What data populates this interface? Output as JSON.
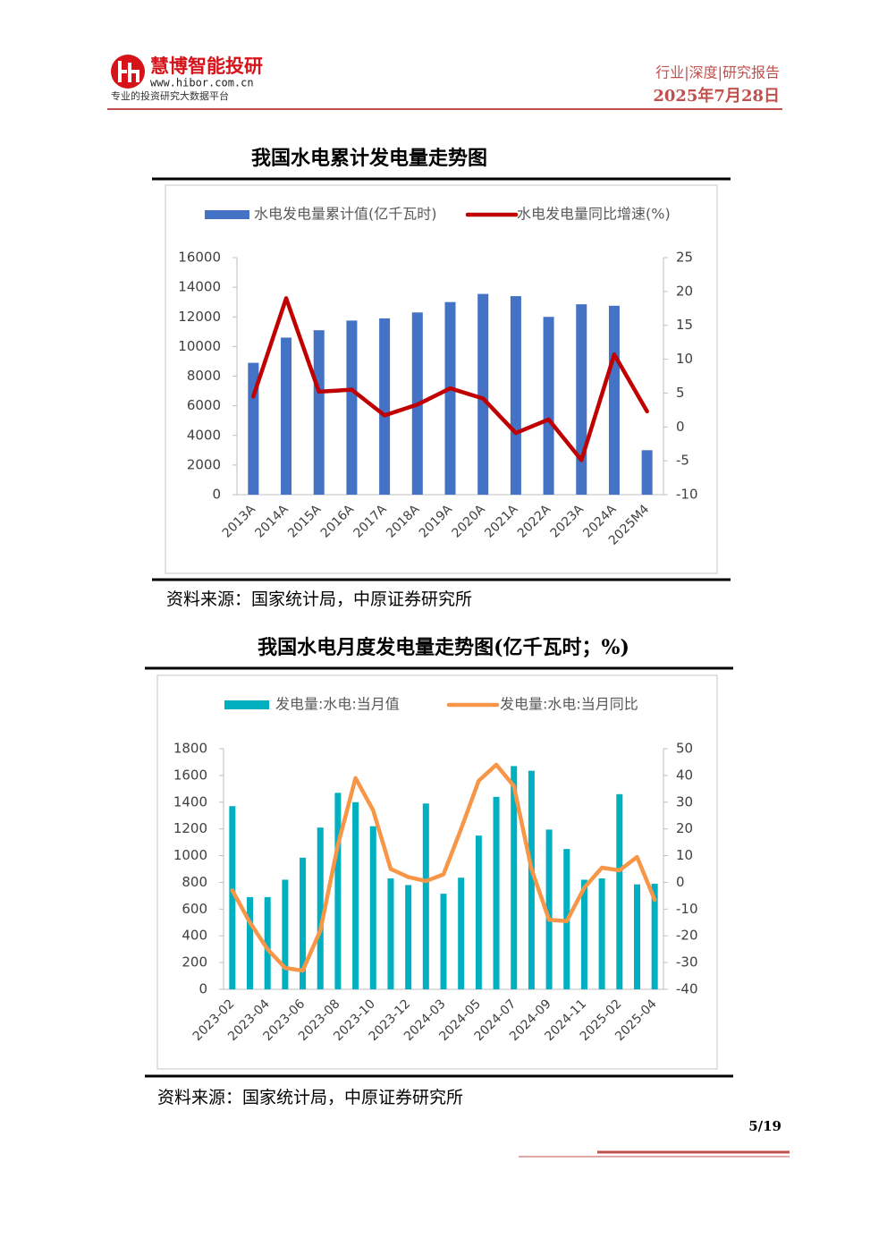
{
  "header": {
    "brand": "慧博智能投研",
    "url": "www.hibor.com.cn",
    "tagline": "专业的投资研究大数据平台",
    "report_type": "行业|深度|研究报告",
    "date": "2025年7月28日"
  },
  "chart_data": [
    {
      "type": "combo",
      "title": "我国水电累计发电量走势图",
      "source": "资料来源：国家统计局，中原证券研究所",
      "categories": [
        "2013A",
        "2014A",
        "2015A",
        "2016A",
        "2017A",
        "2018A",
        "2019A",
        "2020A",
        "2021A",
        "2022A",
        "2023A",
        "2024A",
        "2025M4"
      ],
      "series": [
        {
          "name": "水电发电量累计值(亿千瓦时)",
          "type": "bar",
          "color": "#4472c4",
          "values": [
            8900,
            10600,
            11100,
            11750,
            11900,
            12300,
            13000,
            13550,
            13400,
            12000,
            12850,
            12750,
            3000
          ]
        },
        {
          "name": "水电发电量同比增速(%)",
          "type": "line",
          "axis": "y2",
          "color": "#c00000",
          "values": [
            4.5,
            19,
            5.2,
            5.5,
            1.7,
            3.3,
            5.7,
            4.2,
            -0.9,
            1.1,
            -4.9,
            10.7,
            2.3
          ]
        }
      ],
      "ylim": [
        0,
        16000
      ],
      "yticks": [
        0,
        2000,
        4000,
        6000,
        8000,
        10000,
        12000,
        14000,
        16000
      ],
      "y2lim": [
        -10,
        25
      ],
      "y2ticks": [
        -10,
        -5,
        0,
        5,
        10,
        15,
        20,
        25
      ],
      "grid": false,
      "legend": "top"
    },
    {
      "type": "combo",
      "title": "我国水电月度发电量走势图(亿千瓦时；%)",
      "source": "资料来源：国家统计局，中原证券研究所",
      "categories": [
        "2023-02",
        null,
        "2023-04",
        null,
        "2023-06",
        null,
        "2023-08",
        null,
        "2023-10",
        null,
        "2023-12",
        null,
        "2024-03",
        null,
        "2024-05",
        null,
        "2024-07",
        null,
        "2024-09",
        null,
        "2024-11",
        null,
        "2025-02",
        null,
        "2025-04"
      ],
      "series": [
        {
          "name": "发电量:水电:当月值",
          "type": "bar",
          "color": "#00b0c0",
          "values": [
            1370,
            690,
            690,
            820,
            985,
            1210,
            1470,
            1400,
            1220,
            830,
            780,
            1390,
            715,
            835,
            1150,
            1440,
            1670,
            1635,
            1195,
            1050,
            820,
            830,
            1460,
            785,
            790
          ]
        },
        {
          "name": "发电量:水电:当月同比",
          "type": "line",
          "axis": "y2",
          "color": "#f79646",
          "values": [
            -3,
            -15,
            -25,
            -32,
            -33,
            -18,
            14,
            39,
            27,
            5,
            2,
            0.5,
            3,
            20,
            38,
            44,
            36,
            5,
            -14,
            -14.5,
            -2,
            5.5,
            4.5,
            9.5,
            -6.5
          ]
        }
      ],
      "ylim": [
        0,
        1800
      ],
      "yticks": [
        0,
        200,
        400,
        600,
        800,
        1000,
        1200,
        1400,
        1600,
        1800
      ],
      "y2lim": [
        -40,
        50
      ],
      "y2ticks": [
        -40,
        -30,
        -20,
        -10,
        0,
        10,
        20,
        30,
        40,
        50
      ],
      "grid": false,
      "legend": "top"
    }
  ],
  "footer": {
    "page": "5/19"
  }
}
